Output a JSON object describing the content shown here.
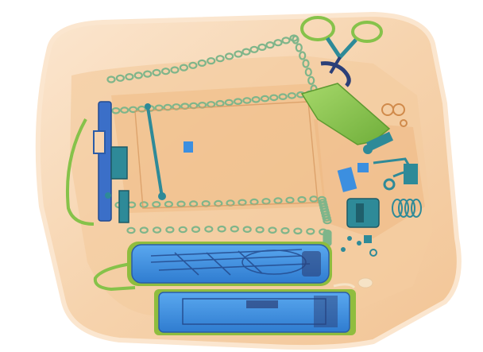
{
  "image": {
    "kind": "x-ray-baggage-scan",
    "palette": {
      "background": "#ffffff",
      "bag_body": "#f6d3ad",
      "bag_edge": "#fbe6cf",
      "bag_shadow": "#eeb98a",
      "organic_orange": "#e9a25e",
      "metal_teal": "#2f8e9e",
      "inorganic_green": "#86c24a",
      "dense_blue": "#3c8fe0",
      "dark_dense": "#2b3f78"
    },
    "objects": [
      {
        "name": "bag-outline",
        "material": "organic"
      },
      {
        "name": "zipper-chain",
        "material": "inorganic"
      },
      {
        "name": "handle-rail-left",
        "material": "metal"
      },
      {
        "name": "handle-rod",
        "material": "metal"
      },
      {
        "name": "scissors",
        "material": "metal"
      },
      {
        "name": "green-bottle",
        "material": "inorganic"
      },
      {
        "name": "keys",
        "material": "metal"
      },
      {
        "name": "battery-pack",
        "material": "metal"
      },
      {
        "name": "cylinder-top",
        "material": "dense"
      },
      {
        "name": "cylinder-bottom",
        "material": "dense"
      },
      {
        "name": "cable-loop",
        "material": "inorganic"
      }
    ]
  }
}
